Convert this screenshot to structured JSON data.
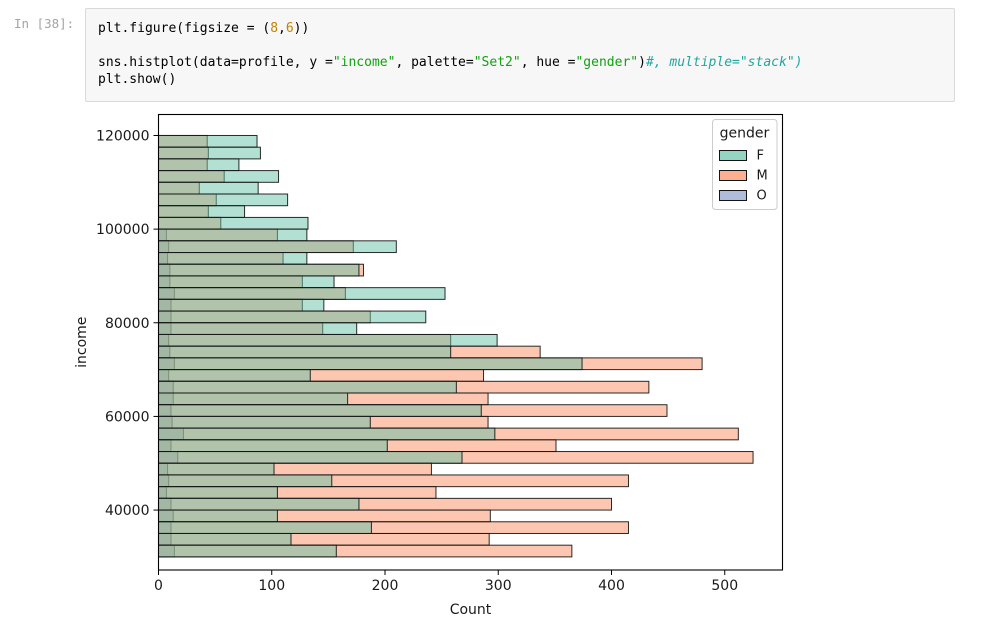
{
  "notebook": {
    "prompt": "In [38]:",
    "code_lines": [
      [
        {
          "t": "plt.figure(figsize = ("
        },
        {
          "t": "8",
          "c": "num"
        },
        {
          "t": ","
        },
        {
          "t": "6",
          "c": "num"
        },
        {
          "t": "))"
        }
      ],
      [],
      [
        {
          "t": "sns.histplot(data=profile, y ="
        },
        {
          "t": "\"income\"",
          "c": "str"
        },
        {
          "t": ", palette="
        },
        {
          "t": "\"Set2\"",
          "c": "str"
        },
        {
          "t": ", hue ="
        },
        {
          "t": "\"gender\"",
          "c": "str"
        },
        {
          "t": ")"
        },
        {
          "t": "#, multiple=\"stack\")",
          "c": "com"
        }
      ],
      [
        {
          "t": "plt.show()"
        }
      ]
    ]
  },
  "chart_data": {
    "type": "bar",
    "subtype": "horizontal-layered-histogram",
    "title": "",
    "xlabel": "Count",
    "ylabel": "income",
    "x_ticks": [
      0,
      100,
      200,
      300,
      400,
      500
    ],
    "y_ticks": [
      40000,
      60000,
      80000,
      100000,
      120000
    ],
    "xlim": [
      0,
      551
    ],
    "ylim": [
      27200,
      124480
    ],
    "bin_width": 2500,
    "grid": false,
    "legend": {
      "title": "gender",
      "position": "upper right",
      "entries": [
        {
          "label": "F",
          "color": "#66c2a5"
        },
        {
          "label": "M",
          "color": "#fc8d62"
        },
        {
          "label": "O",
          "color": "#8da0cb"
        }
      ]
    },
    "bar_edge_color": "#141414",
    "fill_opacity": 0.5,
    "bins": [
      {
        "income": 118750,
        "F": 87,
        "M": 43,
        "O": 0
      },
      {
        "income": 116250,
        "F": 90,
        "M": 44,
        "O": 0
      },
      {
        "income": 113750,
        "F": 71,
        "M": 43,
        "O": 0
      },
      {
        "income": 111250,
        "F": 106,
        "M": 58,
        "O": 0
      },
      {
        "income": 108750,
        "F": 88,
        "M": 36,
        "O": 0
      },
      {
        "income": 106250,
        "F": 114,
        "M": 51,
        "O": 0
      },
      {
        "income": 103750,
        "F": 76,
        "M": 44,
        "O": 0
      },
      {
        "income": 101250,
        "F": 132,
        "M": 55,
        "O": 0
      },
      {
        "income": 98750,
        "F": 131,
        "M": 105,
        "O": 7
      },
      {
        "income": 96250,
        "F": 210,
        "M": 172,
        "O": 9
      },
      {
        "income": 93750,
        "F": 131,
        "M": 110,
        "O": 8
      },
      {
        "income": 91250,
        "F": 177,
        "M": 181,
        "O": 10
      },
      {
        "income": 88750,
        "F": 155,
        "M": 127,
        "O": 10
      },
      {
        "income": 86250,
        "F": 253,
        "M": 165,
        "O": 14
      },
      {
        "income": 83750,
        "F": 146,
        "M": 127,
        "O": 11
      },
      {
        "income": 81250,
        "F": 236,
        "M": 187,
        "O": 11
      },
      {
        "income": 78750,
        "F": 175,
        "M": 145,
        "O": 11
      },
      {
        "income": 76250,
        "F": 299,
        "M": 258,
        "O": 9
      },
      {
        "income": 73750,
        "F": 258,
        "M": 337,
        "O": 10
      },
      {
        "income": 71250,
        "F": 374,
        "M": 480,
        "O": 14
      },
      {
        "income": 68750,
        "F": 134,
        "M": 287,
        "O": 9
      },
      {
        "income": 66250,
        "F": 263,
        "M": 433,
        "O": 13
      },
      {
        "income": 63750,
        "F": 167,
        "M": 291,
        "O": 13
      },
      {
        "income": 61250,
        "F": 285,
        "M": 449,
        "O": 11
      },
      {
        "income": 58750,
        "F": 187,
        "M": 291,
        "O": 12
      },
      {
        "income": 56250,
        "F": 297,
        "M": 512,
        "O": 22
      },
      {
        "income": 53750,
        "F": 202,
        "M": 351,
        "O": 11
      },
      {
        "income": 51250,
        "F": 268,
        "M": 525,
        "O": 17
      },
      {
        "income": 48750,
        "F": 102,
        "M": 241,
        "O": 8
      },
      {
        "income": 46250,
        "F": 153,
        "M": 415,
        "O": 9
      },
      {
        "income": 43750,
        "F": 105,
        "M": 245,
        "O": 7
      },
      {
        "income": 41250,
        "F": 177,
        "M": 400,
        "O": 11
      },
      {
        "income": 38750,
        "F": 105,
        "M": 293,
        "O": 13
      },
      {
        "income": 36250,
        "F": 188,
        "M": 415,
        "O": 11
      },
      {
        "income": 33750,
        "F": 117,
        "M": 292,
        "O": 11
      },
      {
        "income": 31250,
        "F": 157,
        "M": 365,
        "O": 14
      }
    ]
  }
}
